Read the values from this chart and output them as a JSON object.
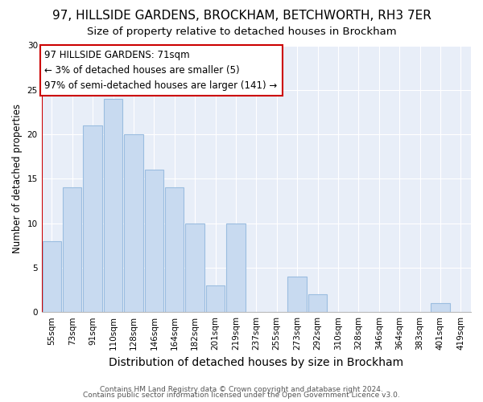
{
  "title": "97, HILLSIDE GARDENS, BROCKHAM, BETCHWORTH, RH3 7ER",
  "subtitle": "Size of property relative to detached houses in Brockham",
  "xlabel": "Distribution of detached houses by size in Brockham",
  "ylabel": "Number of detached properties",
  "categories": [
    "55sqm",
    "73sqm",
    "91sqm",
    "110sqm",
    "128sqm",
    "146sqm",
    "164sqm",
    "182sqm",
    "201sqm",
    "219sqm",
    "237sqm",
    "255sqm",
    "273sqm",
    "292sqm",
    "310sqm",
    "328sqm",
    "346sqm",
    "364sqm",
    "383sqm",
    "401sqm",
    "419sqm"
  ],
  "values": [
    8,
    14,
    21,
    24,
    20,
    16,
    14,
    10,
    3,
    10,
    0,
    0,
    4,
    2,
    0,
    0,
    0,
    0,
    0,
    1,
    0
  ],
  "bar_color": "#c8daf0",
  "bar_edge_color": "#9bbde0",
  "redline_color": "#cc0000",
  "redline_x": -0.5,
  "annotation_text": "97 HILLSIDE GARDENS: 71sqm\n← 3% of detached houses are smaller (5)\n97% of semi-detached houses are larger (141) →",
  "annotation_box_facecolor": "#ffffff",
  "annotation_box_edgecolor": "#cc0000",
  "ylim": [
    0,
    30
  ],
  "yticks": [
    0,
    5,
    10,
    15,
    20,
    25,
    30
  ],
  "bg_color": "#e8eef8",
  "grid_color": "#ffffff",
  "title_fontsize": 11,
  "subtitle_fontsize": 9.5,
  "xlabel_fontsize": 10,
  "ylabel_fontsize": 8.5,
  "tick_fontsize": 7.5,
  "annotation_fontsize": 8.5,
  "footer1": "Contains HM Land Registry data © Crown copyright and database right 2024.",
  "footer2": "Contains public sector information licensed under the Open Government Licence v3.0.",
  "footer_fontsize": 6.5
}
